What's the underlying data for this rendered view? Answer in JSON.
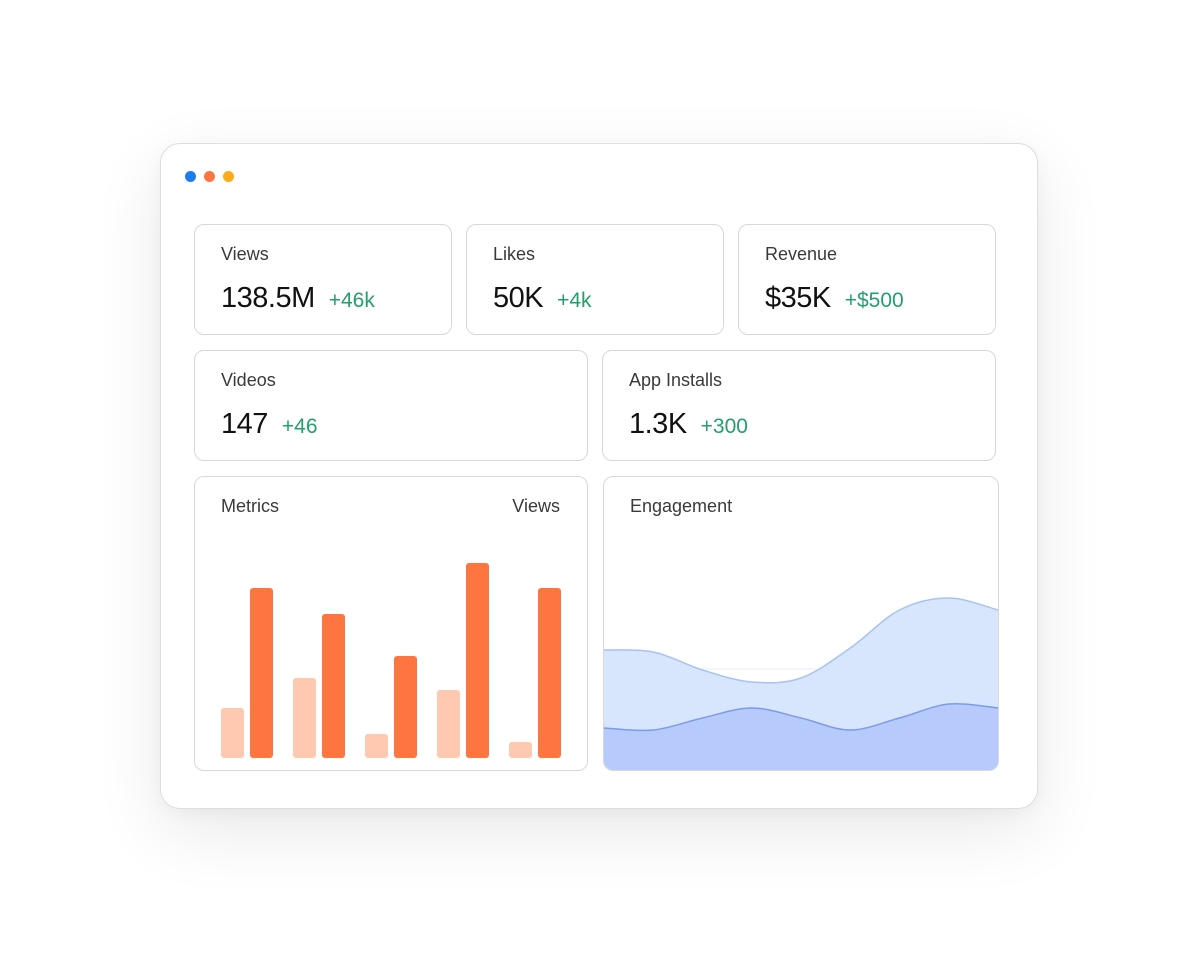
{
  "window": {
    "dots": [
      {
        "name": "blue-dot",
        "color": "#1d7cf2"
      },
      {
        "name": "orange-dot",
        "color": "#ff7540"
      },
      {
        "name": "yellow-dot",
        "color": "#ffab1a"
      }
    ]
  },
  "stats": {
    "views": {
      "label": "Views",
      "value": "138.5M",
      "delta": "+46k"
    },
    "likes": {
      "label": "Likes",
      "value": "50K",
      "delta": "+4k"
    },
    "revenue": {
      "label": "Revenue",
      "value": "$35K",
      "delta": "+$500"
    },
    "videos": {
      "label": "Videos",
      "value": "147",
      "delta": "+46"
    },
    "app_installs": {
      "label": "App Installs",
      "value": "1.3K",
      "delta": "+300"
    }
  },
  "metrics_card": {
    "title": "Metrics",
    "selector": "Views"
  },
  "engagement_card": {
    "title": "Engagement"
  },
  "colors": {
    "positive": "#22a06b",
    "bar_light": "#ffc8b0",
    "bar_dark": "#ff7540",
    "area_light": "#d7e5fd",
    "area_dark": "#b6cbfb"
  },
  "chart_data": [
    {
      "type": "bar",
      "title": "Metrics",
      "categories": [
        "1",
        "2",
        "3",
        "4",
        "5"
      ],
      "series": [
        {
          "values": [
            50,
            80,
            24,
            68,
            16
          ]
        },
        {
          "values": [
            170,
            144,
            102,
            195,
            170
          ]
        }
      ],
      "ylim": [
        0,
        200
      ],
      "grid": false
    },
    {
      "type": "area",
      "title": "Engagement",
      "x": [
        0,
        1,
        2,
        3,
        4,
        5,
        6,
        7,
        8
      ],
      "series": [
        {
          "values": [
            120,
            118,
            100,
            88,
            92,
            122,
            160,
            172,
            160
          ]
        },
        {
          "values": [
            42,
            40,
            52,
            62,
            52,
            40,
            52,
            66,
            62
          ]
        }
      ],
      "ylim": [
        0,
        190
      ],
      "grid": false
    }
  ]
}
